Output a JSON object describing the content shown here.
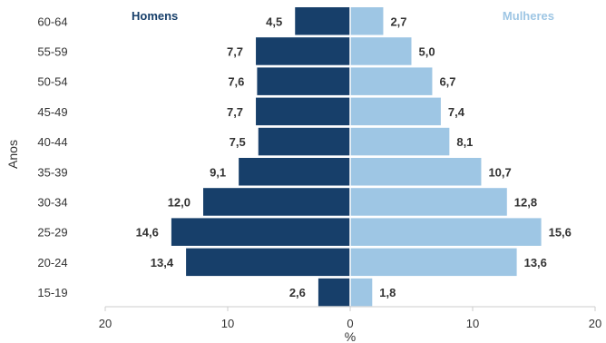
{
  "chart_data": {
    "type": "bar",
    "orientation": "horizontal-population-pyramid",
    "categories": [
      "60-64",
      "55-59",
      "50-54",
      "45-49",
      "40-44",
      "35-39",
      "30-34",
      "25-29",
      "20-24",
      "15-19"
    ],
    "series": [
      {
        "name": "Homens",
        "color": "#173f6a",
        "side": "left",
        "values": [
          4.5,
          7.7,
          7.6,
          7.7,
          7.5,
          9.1,
          12.0,
          14.6,
          13.4,
          2.6
        ],
        "labels": [
          "4,5",
          "7,7",
          "7,6",
          "7,7",
          "7,5",
          "9,1",
          "12,0",
          "14,6",
          "13,4",
          "2,6"
        ]
      },
      {
        "name": "Mulheres",
        "color": "#9ec6e4",
        "side": "right",
        "values": [
          2.7,
          5.0,
          6.7,
          7.4,
          8.1,
          10.7,
          12.8,
          15.6,
          13.6,
          1.8
        ],
        "labels": [
          "2,7",
          "5,0",
          "6,7",
          "7,4",
          "8,1",
          "10,7",
          "12,8",
          "15,6",
          "13,6",
          "1,8"
        ]
      }
    ],
    "xlabel": "%",
    "ylabel": "Anos",
    "xlim": [
      -20,
      20
    ],
    "xticks": [
      -20,
      -10,
      0,
      10,
      20
    ],
    "xtick_labels": [
      "20",
      "10",
      "0",
      "10",
      "20"
    ],
    "grid": false,
    "legend": "top-left and top-right"
  }
}
